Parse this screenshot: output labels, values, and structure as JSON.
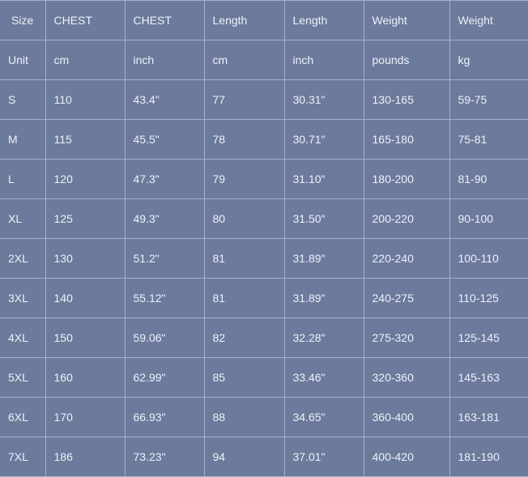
{
  "table": {
    "header": [
      "Size",
      "CHEST",
      "CHEST",
      "Length",
      "Length",
      "Weight",
      "Weight"
    ],
    "units": [
      "Unit",
      "cm",
      "inch",
      "cm",
      "inch",
      "pounds",
      "kg"
    ],
    "rows": [
      [
        "S",
        "110",
        "43.4\"",
        "77",
        "30.31\"",
        "130-165",
        "59-75"
      ],
      [
        "M",
        "115",
        "45.5\"",
        "78",
        "30.71\"",
        "165-180",
        "75-81"
      ],
      [
        "L",
        "120",
        "47.3\"",
        "79",
        "31.10\"",
        "180-200",
        "81-90"
      ],
      [
        "XL",
        "125",
        "49.3\"",
        "80",
        "31.50\"",
        "200-220",
        "90-100"
      ],
      [
        "2XL",
        "130",
        "51.2\"",
        "81",
        "31.89\"",
        "220-240",
        "100-110"
      ],
      [
        "3XL",
        "140",
        "55.12\"",
        "81",
        "31.89\"",
        "240-275",
        "110-125"
      ],
      [
        "4XL",
        "150",
        "59.06\"",
        "82",
        "32.28\"",
        "275-320",
        "125-145"
      ],
      [
        "5XL",
        "160",
        "62.99\"",
        "85",
        "33.46\"",
        "320-360",
        "145-163"
      ],
      [
        "6XL",
        "170",
        "66.93\"",
        "88",
        "34.65\"",
        "360-400",
        "163-181"
      ],
      [
        "7XL",
        "186",
        "73.23\"",
        "94",
        "37.01\"",
        "400-420",
        "181-190"
      ]
    ]
  },
  "colors": {
    "background": "#6c7a9c",
    "grid": "#a7b1c9",
    "text": "#eef1f7"
  }
}
